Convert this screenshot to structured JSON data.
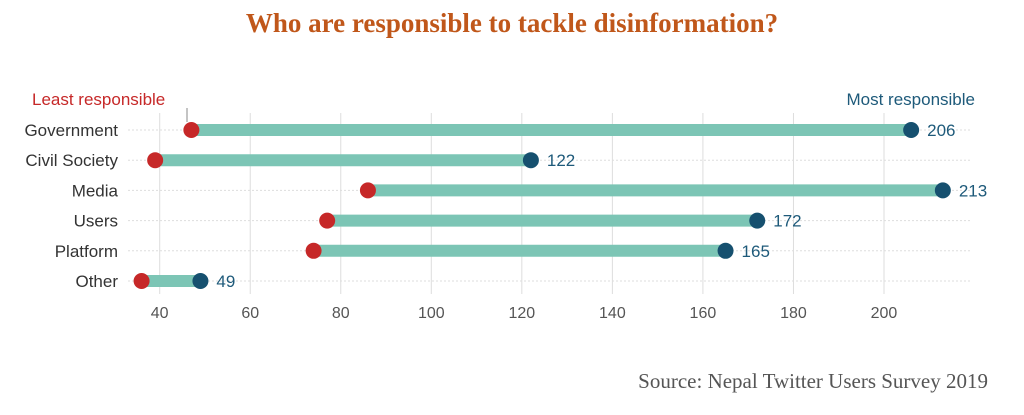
{
  "title": "Who are responsible to tackle disinformation?",
  "source": "Source: Nepal Twitter Users Survey 2019",
  "colors": {
    "title": "#c0571a",
    "least": "#c62828",
    "most": "#16506f",
    "bar": "#7cc5b5",
    "grid": "#dddddd"
  },
  "chart_data": {
    "type": "dumbbell",
    "legend": {
      "least": "Least responsible",
      "most": "Most responsible"
    },
    "categories": [
      "Government",
      "Civil Society",
      "Media",
      "Users",
      "Platform",
      "Other"
    ],
    "series": [
      {
        "name": "Least responsible",
        "values": [
          47,
          39,
          86,
          77,
          74,
          36
        ]
      },
      {
        "name": "Most responsible",
        "values": [
          206,
          122,
          213,
          172,
          165,
          49
        ]
      }
    ],
    "xticks": [
      40,
      60,
      80,
      100,
      120,
      140,
      160,
      180,
      200
    ],
    "xlim": [
      33,
      219
    ],
    "grid": true
  }
}
